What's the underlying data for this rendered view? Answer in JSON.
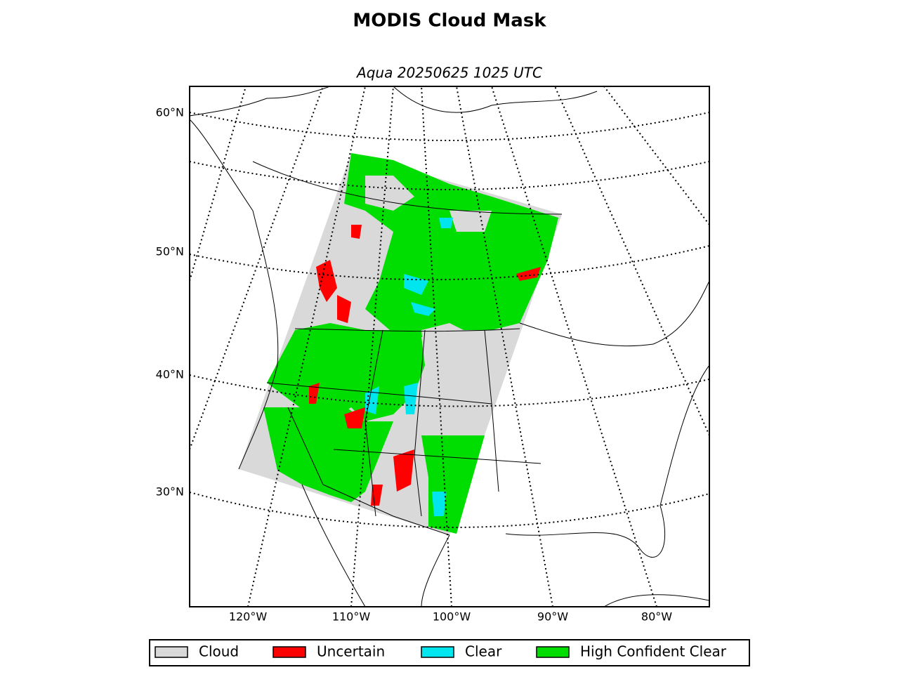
{
  "title": "MODIS Cloud Mask",
  "subtitle": "Aqua 20250625 1025 UTC",
  "map": {
    "lat_labels": [
      "60°N",
      "50°N",
      "40°N",
      "30°N"
    ],
    "lon_labels": [
      "120°W",
      "110°W",
      "100°W",
      "90°W",
      "80°W"
    ]
  },
  "legend": [
    {
      "label": "Cloud",
      "color": "#d9d9d9"
    },
    {
      "label": "Uncertain",
      "color": "#ff0000"
    },
    {
      "label": "Clear",
      "color": "#00e5ee"
    },
    {
      "label": "High Confident Clear",
      "color": "#00dd00"
    }
  ]
}
